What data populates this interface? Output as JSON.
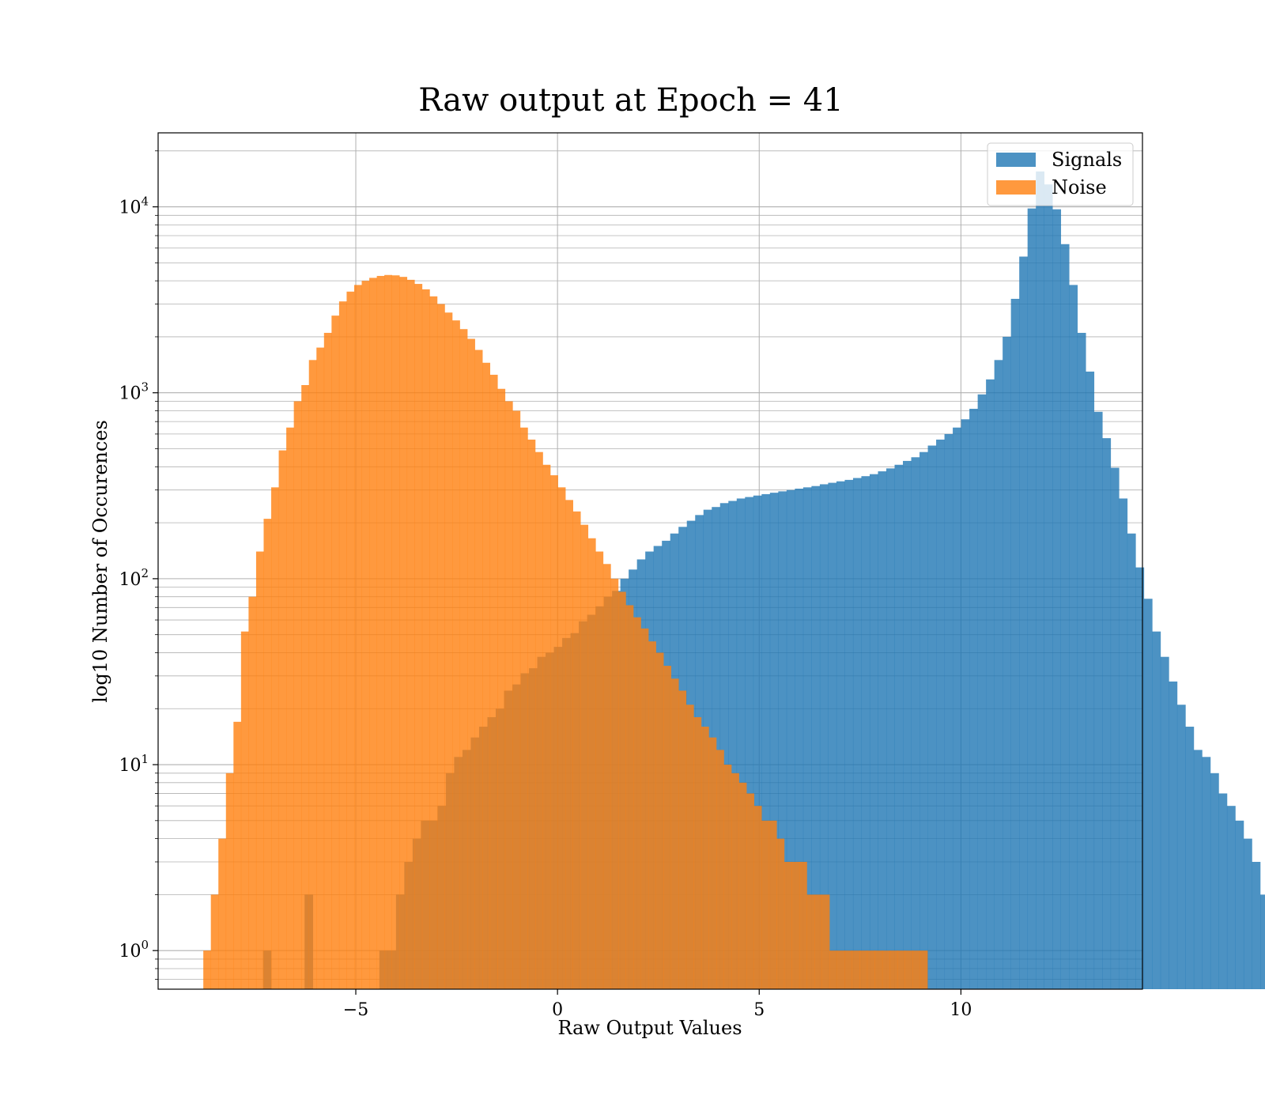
{
  "chart_data": {
    "type": "histogram",
    "title": "Raw output at Epoch = 41",
    "xlabel": "Raw Output Values",
    "ylabel": "log10 Number of Occurences",
    "x_scale": "linear",
    "y_scale": "log",
    "xlim": [
      -9.9,
      14.5
    ],
    "ylim": [
      0.62,
      25000
    ],
    "x_ticks": [
      -5,
      0,
      5,
      10
    ],
    "x_tick_labels": [
      "−5",
      "0",
      "5",
      "10"
    ],
    "y_ticks": [
      1,
      10,
      100,
      1000,
      10000
    ],
    "y_tick_labels": [
      {
        "base": "10",
        "exp": "0"
      },
      {
        "base": "10",
        "exp": "1"
      },
      {
        "base": "10",
        "exp": "2"
      },
      {
        "base": "10",
        "exp": "3"
      },
      {
        "base": "10",
        "exp": "4"
      }
    ],
    "grid": true,
    "legend_position": "top-right",
    "series": [
      {
        "name": "Signals",
        "color": "#1f77b4",
        "alpha": 0.8,
        "bin_start": -7.3,
        "bin_width": 0.206,
        "counts": [
          1,
          0,
          0,
          0,
          0,
          2,
          0,
          0,
          0,
          0,
          0,
          0,
          0,
          0,
          1,
          1,
          2,
          3,
          4,
          5,
          5,
          6,
          9,
          11,
          12,
          14,
          16,
          18,
          20,
          25,
          27,
          31,
          33,
          38,
          40,
          43,
          48,
          51,
          59,
          64,
          71,
          80,
          86,
          100,
          112,
          127,
          140,
          150,
          160,
          175,
          190,
          205,
          220,
          235,
          243,
          255,
          262,
          270,
          275,
          280,
          285,
          290,
          295,
          300,
          305,
          310,
          315,
          322,
          328,
          334,
          340,
          348,
          356,
          365,
          378,
          392,
          410,
          430,
          450,
          480,
          520,
          560,
          600,
          650,
          720,
          820,
          980,
          1180,
          1500,
          2000,
          3200,
          5400,
          9800,
          15500,
          13200,
          9700,
          6300,
          3800,
          2100,
          1300,
          790,
          570,
          395,
          270,
          175,
          115,
          78,
          52,
          38,
          28,
          21,
          16,
          12,
          11,
          9,
          7,
          6,
          5,
          4,
          3,
          2,
          1
        ]
      },
      {
        "name": "Noise",
        "color": "#ff7f0e",
        "alpha": 0.8,
        "bin_start": -8.78,
        "bin_width": 0.187,
        "counts": [
          1,
          2,
          4,
          9,
          17,
          52,
          80,
          140,
          210,
          310,
          490,
          650,
          900,
          1100,
          1500,
          1750,
          2100,
          2600,
          3100,
          3500,
          3800,
          4000,
          4150,
          4250,
          4300,
          4280,
          4200,
          4050,
          3850,
          3600,
          3300,
          3000,
          2700,
          2450,
          2200,
          1950,
          1700,
          1450,
          1250,
          1050,
          900,
          800,
          650,
          560,
          480,
          410,
          360,
          310,
          265,
          230,
          195,
          165,
          140,
          120,
          100,
          85,
          72,
          62,
          54,
          46,
          40,
          34,
          29,
          25,
          21,
          18,
          16,
          14,
          12,
          10,
          9,
          8,
          7,
          6,
          5,
          5,
          4,
          3,
          3,
          3,
          2,
          2,
          2,
          1,
          1,
          1,
          1,
          1,
          1,
          1,
          1,
          1,
          1,
          1,
          1,
          1
        ]
      }
    ]
  }
}
